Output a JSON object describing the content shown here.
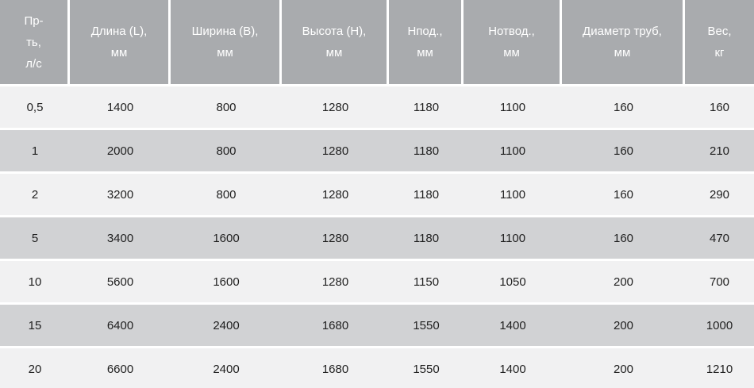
{
  "table": {
    "headers": [
      {
        "lines": [
          "Пр-",
          "ть,",
          "л/с"
        ]
      },
      {
        "lines": [
          "Длина (L),",
          "мм"
        ]
      },
      {
        "lines": [
          "Ширина (B),",
          "мм"
        ]
      },
      {
        "lines": [
          "Высота (H),",
          "мм"
        ]
      },
      {
        "lines": [
          "Нпод.,",
          "мм"
        ]
      },
      {
        "lines": [
          "Нотвод.,",
          "мм"
        ]
      },
      {
        "lines": [
          "Диаметр труб,",
          "мм"
        ]
      },
      {
        "lines": [
          "Вес,",
          "кг"
        ]
      }
    ],
    "rows": [
      [
        "0,5",
        "1400",
        "800",
        "1280",
        "1180",
        "1100",
        "160",
        "160"
      ],
      [
        "1",
        "2000",
        "800",
        "1280",
        "1180",
        "1100",
        "160",
        "210"
      ],
      [
        "2",
        "3200",
        "800",
        "1280",
        "1180",
        "1100",
        "160",
        "290"
      ],
      [
        "5",
        "3400",
        "1600",
        "1280",
        "1180",
        "1100",
        "160",
        "470"
      ],
      [
        "10",
        "5600",
        "1600",
        "1280",
        "1150",
        "1050",
        "200",
        "700"
      ],
      [
        "15",
        "6400",
        "2400",
        "1680",
        "1550",
        "1400",
        "200",
        "1000"
      ],
      [
        "20",
        "6600",
        "2400",
        "1680",
        "1550",
        "1400",
        "200",
        "1210"
      ]
    ]
  },
  "colors": {
    "header_bg": "#a9abae",
    "row_light": "#f1f1f2",
    "row_dark": "#d1d2d4",
    "header_text": "#ffffff",
    "cell_text": "#1f1f1f",
    "separator": "#ffffff"
  }
}
